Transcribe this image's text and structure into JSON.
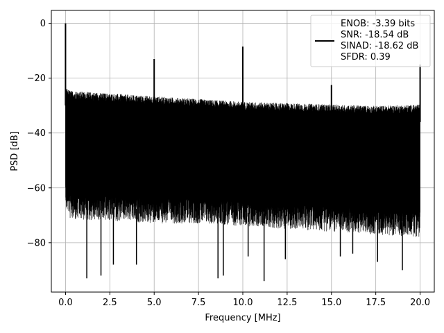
{
  "chart_data": {
    "type": "line",
    "title": "",
    "xlabel": "Frequency [MHz]",
    "ylabel": "PSD [dB]",
    "xlim": [
      -0.8,
      20.8
    ],
    "ylim": [
      -98,
      4.7
    ],
    "x_ticks": [
      0.0,
      2.5,
      5.0,
      7.5,
      10.0,
      12.5,
      15.0,
      17.5,
      20.0
    ],
    "x_tick_labels": [
      "0.0",
      "2.5",
      "5.0",
      "7.5",
      "10.0",
      "12.5",
      "15.0",
      "17.5",
      "20.0"
    ],
    "y_ticks": [
      0,
      -20,
      -40,
      -60,
      -80
    ],
    "y_tick_labels": [
      "0",
      "−20",
      "−40",
      "−60",
      "−80"
    ],
    "grid": true,
    "legend_position": "top-right",
    "line_color": "#000000",
    "series": [
      {
        "legend_lines": [
          "ENOB: -3.39 bits",
          "SNR: -18.54 dB",
          "SINAD: -18.62 dB",
          "SFDR: 0.39"
        ],
        "noise_band": {
          "x": [
            0,
            0.3,
            2.5,
            5,
            7.5,
            10,
            12.5,
            15,
            17.5,
            20
          ],
          "top": [
            -26,
            -27,
            -28,
            -29,
            -30,
            -31,
            -31.5,
            -32,
            -32.5,
            -32
          ],
          "bottom": [
            -62,
            -67,
            -67,
            -68,
            -68,
            -69,
            -70,
            -71,
            -72,
            -73
          ]
        },
        "peaks": [
          {
            "x": 0.0,
            "y": 0.0
          },
          {
            "x": 5.0,
            "y": -13.0
          },
          {
            "x": 10.0,
            "y": -8.5
          },
          {
            "x": 15.0,
            "y": -22.5
          },
          {
            "x": 20.0,
            "y": -15.0
          }
        ],
        "dips": [
          {
            "x": 1.2,
            "y": -93
          },
          {
            "x": 2.0,
            "y": -92
          },
          {
            "x": 2.7,
            "y": -88
          },
          {
            "x": 4.0,
            "y": -88
          },
          {
            "x": 8.6,
            "y": -93
          },
          {
            "x": 8.9,
            "y": -92
          },
          {
            "x": 10.3,
            "y": -85
          },
          {
            "x": 11.2,
            "y": -94
          },
          {
            "x": 12.4,
            "y": -86
          },
          {
            "x": 15.5,
            "y": -85
          },
          {
            "x": 16.2,
            "y": -84
          },
          {
            "x": 17.6,
            "y": -87
          },
          {
            "x": 19.0,
            "y": -90
          }
        ]
      }
    ]
  }
}
